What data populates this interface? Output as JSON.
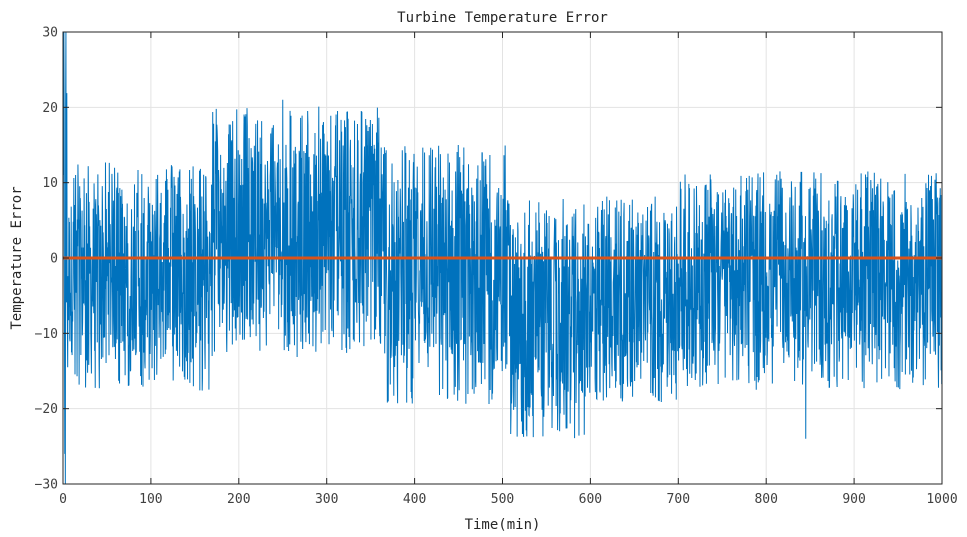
{
  "chart_data": {
    "type": "line",
    "title": "Turbine Temperature Error",
    "xlabel": "Time(min)",
    "ylabel": "Temperature Error",
    "xlim": [
      0,
      1000
    ],
    "ylim": [
      -30,
      30
    ],
    "xticks": [
      0,
      100,
      200,
      300,
      400,
      500,
      600,
      700,
      800,
      900,
      1000
    ],
    "yticks": [
      -30,
      -20,
      -10,
      0,
      10,
      20,
      30
    ],
    "grid": true,
    "series": [
      {
        "color": "#0072BD",
        "description": "noisy error signal; upper/lower envelope by time segment",
        "segments": [
          {
            "x": [
              0,
              5
            ],
            "upper": 29,
            "lower": -26
          },
          {
            "x": [
              5,
              170
            ],
            "upper": 8,
            "lower": -13
          },
          {
            "x": [
              170,
              360
            ],
            "upper": 15,
            "lower": -8
          },
          {
            "x": [
              360,
              505
            ],
            "upper": 10,
            "lower": -14
          },
          {
            "x": [
              505,
              600
            ],
            "upper": 3,
            "lower": -19
          },
          {
            "x": [
              600,
              700
            ],
            "upper": 4,
            "lower": -15
          },
          {
            "x": [
              700,
              1000
            ],
            "upper": 7,
            "lower": -13
          }
        ],
        "peaks": [
          {
            "x": 250,
            "y": 21
          },
          {
            "x": 845,
            "y": -24
          },
          {
            "x": 565,
            "y": -23
          },
          {
            "x": 1,
            "y": 30
          },
          {
            "x": 2,
            "y": -26
          }
        ]
      },
      {
        "color": "#D95319",
        "description": "reference line",
        "x": [
          0,
          1000
        ],
        "y": [
          0,
          0
        ]
      }
    ]
  }
}
